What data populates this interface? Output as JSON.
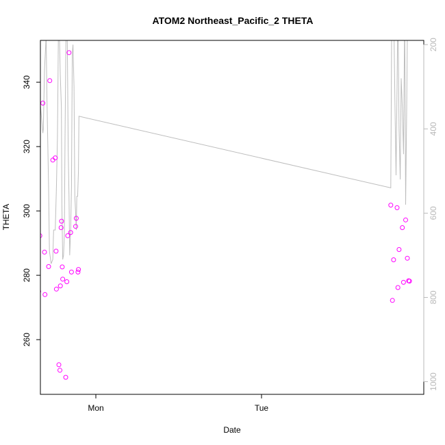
{
  "chart_data": {
    "type": "scatter",
    "title": "ATOM2 Northeast_Pacific_2 THETA",
    "xlabel": "Date",
    "ylabel": "THETA",
    "x_ticks": [
      {
        "label": "Mon",
        "t": 1.0
      },
      {
        "label": "Tue",
        "t": 2.0
      }
    ],
    "ylim": [
      243,
      353
    ],
    "y_ticks": [
      260,
      280,
      300,
      320,
      340
    ],
    "y2_ticks": [
      200,
      400,
      600,
      800,
      1000
    ],
    "y2lim": [
      1030,
      190
    ],
    "colors": {
      "points": "#ff00ff",
      "line": "#bdbdbd",
      "right_axis": "#b8b8b8"
    },
    "series": [
      {
        "type": "points",
        "points": [
          [
            0.655,
            275.0
          ],
          [
            0.662,
            292.3
          ],
          [
            0.68,
            333.5
          ],
          [
            0.69,
            287.2
          ],
          [
            0.693,
            274.0
          ],
          [
            0.715,
            282.7
          ],
          [
            0.722,
            340.5
          ],
          [
            0.74,
            315.8
          ],
          [
            0.755,
            316.5
          ],
          [
            0.76,
            287.5
          ],
          [
            0.762,
            275.7
          ],
          [
            0.777,
            252.2
          ],
          [
            0.783,
            250.5
          ],
          [
            0.786,
            276.7
          ],
          [
            0.79,
            294.8
          ],
          [
            0.793,
            296.8
          ],
          [
            0.797,
            282.6
          ],
          [
            0.8,
            278.8
          ],
          [
            0.818,
            248.3
          ],
          [
            0.825,
            278.0
          ],
          [
            0.83,
            292.3
          ],
          [
            0.838,
            349.2
          ],
          [
            0.848,
            293.3
          ],
          [
            0.853,
            281.0
          ],
          [
            0.878,
            295.2
          ],
          [
            0.882,
            297.7
          ],
          [
            0.892,
            281.0
          ],
          [
            0.895,
            281.8
          ],
          [
            2.78,
            301.8
          ],
          [
            2.79,
            272.2
          ],
          [
            2.797,
            284.8
          ],
          [
            2.818,
            301.0
          ],
          [
            2.823,
            276.2
          ],
          [
            2.83,
            288.0
          ],
          [
            2.85,
            294.8
          ],
          [
            2.857,
            277.8
          ],
          [
            2.87,
            297.2
          ],
          [
            2.88,
            285.3
          ],
          [
            2.888,
            278.3
          ],
          [
            2.893,
            278.2
          ]
        ]
      },
      {
        "type": "line",
        "axis": "right",
        "points": [
          [
            0.655,
            200
          ],
          [
            0.665,
            340
          ],
          [
            0.68,
            410
          ],
          [
            0.683,
            400
          ],
          [
            0.69,
            260
          ],
          [
            0.7,
            180
          ],
          [
            0.705,
            330
          ],
          [
            0.715,
            540
          ],
          [
            0.72,
            690
          ],
          [
            0.73,
            720
          ],
          [
            0.74,
            710
          ],
          [
            0.745,
            640
          ],
          [
            0.755,
            640
          ],
          [
            0.762,
            540
          ],
          [
            0.768,
            420
          ],
          [
            0.772,
            270
          ],
          [
            0.775,
            100
          ],
          [
            0.78,
            180
          ],
          [
            0.785,
            270
          ],
          [
            0.792,
            350
          ],
          [
            0.795,
            580
          ],
          [
            0.8,
            710
          ],
          [
            0.805,
            700
          ],
          [
            0.81,
            650
          ],
          [
            0.814,
            420
          ],
          [
            0.818,
            240
          ],
          [
            0.822,
            100
          ],
          [
            0.828,
            200
          ],
          [
            0.833,
            450
          ],
          [
            0.838,
            560
          ],
          [
            0.842,
            700
          ],
          [
            0.848,
            640
          ],
          [
            0.853,
            540
          ],
          [
            0.858,
            220
          ],
          [
            0.862,
            200
          ],
          [
            0.868,
            300
          ],
          [
            0.873,
            560
          ],
          [
            0.878,
            600
          ],
          [
            0.882,
            640
          ],
          [
            0.885,
            560
          ],
          [
            0.89,
            560
          ],
          [
            0.895,
            500
          ],
          [
            0.898,
            370
          ],
          [
            2.78,
            540
          ],
          [
            2.786,
            130
          ],
          [
            2.792,
            50
          ],
          [
            2.798,
            120
          ],
          [
            2.805,
            330
          ],
          [
            2.812,
            510
          ],
          [
            2.818,
            300
          ],
          [
            2.823,
            100
          ],
          [
            2.83,
            400
          ],
          [
            2.837,
            520
          ],
          [
            2.843,
            280
          ],
          [
            2.85,
            350
          ],
          [
            2.857,
            460
          ],
          [
            2.864,
            120
          ],
          [
            2.87,
            580
          ],
          [
            2.876,
            360
          ],
          [
            2.882,
            100
          ],
          [
            2.888,
            150
          ],
          [
            2.893,
            50
          ]
        ]
      }
    ]
  }
}
